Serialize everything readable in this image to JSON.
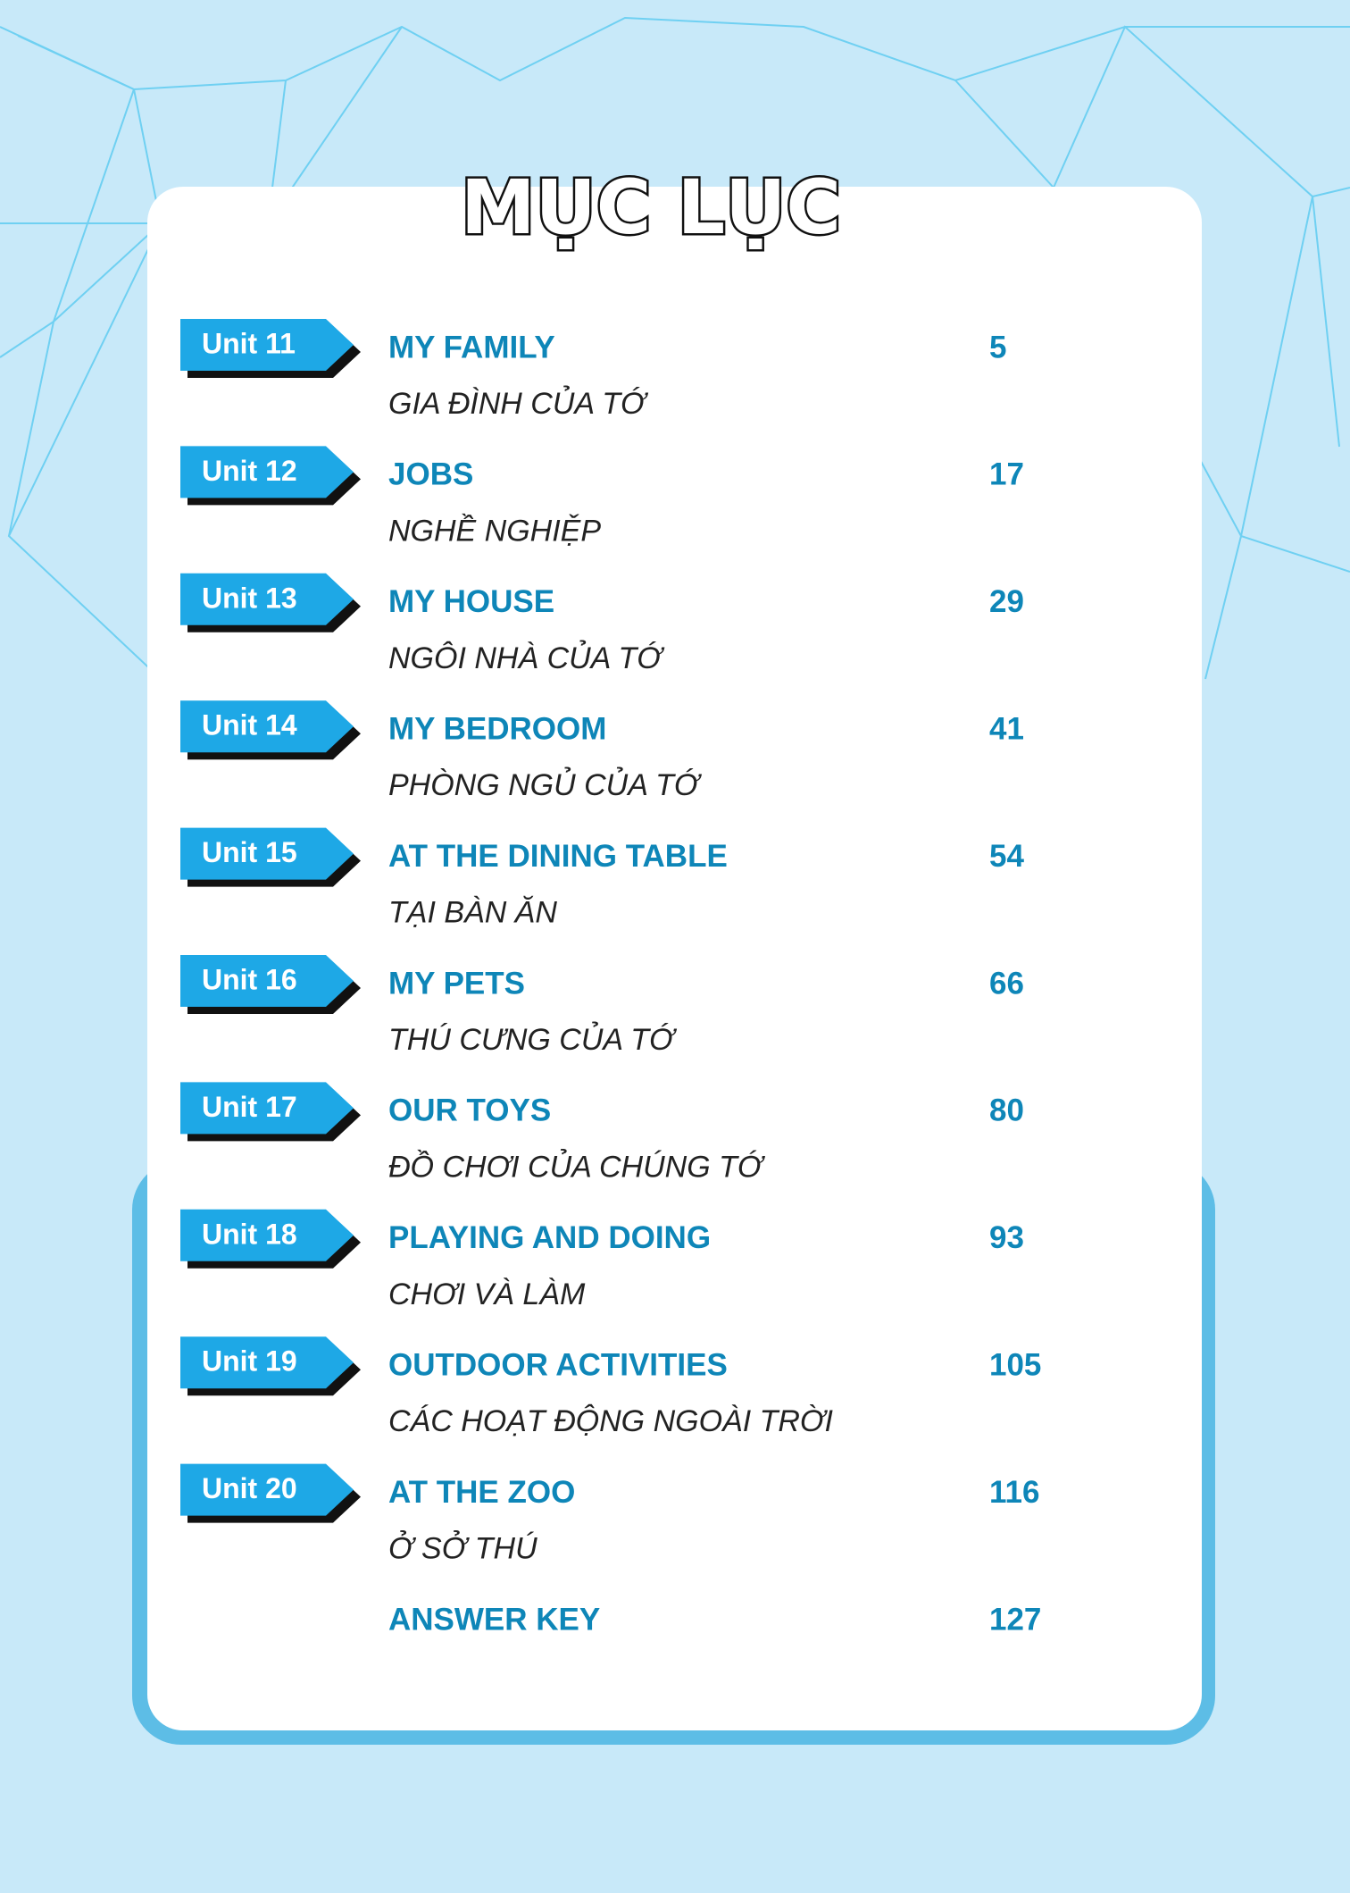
{
  "header": {
    "title": "MỤC LỤC"
  },
  "entries": [
    {
      "unit": "Unit 11",
      "title": "MY FAMILY",
      "subtitle": "GIA ĐÌNH CỦA TỚ",
      "page": "5"
    },
    {
      "unit": "Unit 12",
      "title": "JOBS",
      "subtitle": "NGHỀ NGHIỆP",
      "page": "17"
    },
    {
      "unit": "Unit 13",
      "title": "MY HOUSE",
      "subtitle": "NGÔI NHÀ CỦA TỚ",
      "page": "29"
    },
    {
      "unit": "Unit 14",
      "title": "MY BEDROOM",
      "subtitle": "PHÒNG NGỦ CỦA TỚ",
      "page": "41"
    },
    {
      "unit": "Unit 15",
      "title": "AT THE DINING TABLE",
      "subtitle": "TẠI BÀN ĂN",
      "page": "54"
    },
    {
      "unit": "Unit 16",
      "title": "MY PETS",
      "subtitle": "THÚ CƯNG CỦA TỚ",
      "page": "66"
    },
    {
      "unit": "Unit 17",
      "title": "OUR TOYS",
      "subtitle": "ĐỒ CHƠI CỦA CHÚNG TỚ",
      "page": "80"
    },
    {
      "unit": "Unit 18",
      "title": "PLAYING AND DOING",
      "subtitle": "CHƠI VÀ LÀM",
      "page": "93"
    },
    {
      "unit": "Unit 19",
      "title": "OUTDOOR ACTIVITIES",
      "subtitle": "CÁC HOẠT ĐỘNG NGOÀI TRỜI",
      "page": "105"
    },
    {
      "unit": "Unit 20",
      "title": "AT THE ZOO",
      "subtitle": "Ở SỞ THÚ",
      "page": "116"
    }
  ],
  "answer_key": {
    "title": "ANSWER KEY",
    "page": "127"
  }
}
